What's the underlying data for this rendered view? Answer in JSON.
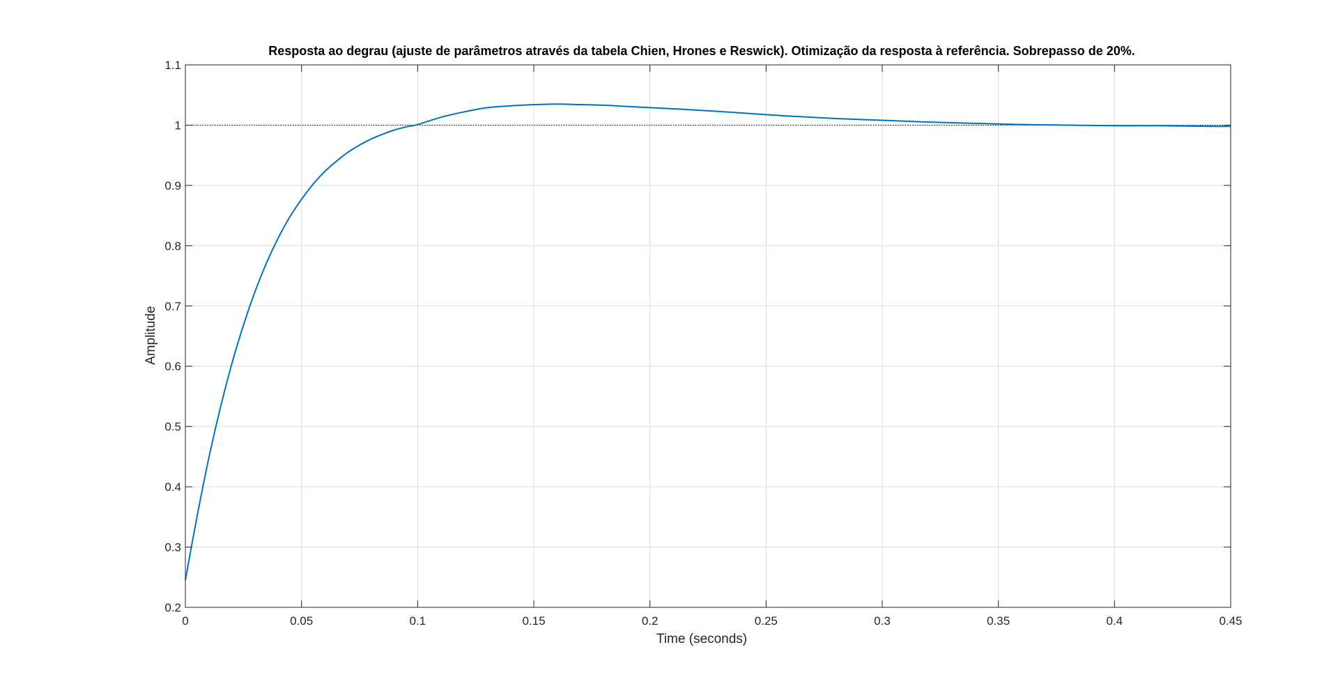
{
  "figure": {
    "background": "#ffffff"
  },
  "chart_data": {
    "type": "line",
    "title": "Resposta ao degrau (ajuste de parâmetros através da tabela Chien, Hrones e Reswick). Otimização da resposta à referência. Sobrepasso de 20%.",
    "xlabel": "Time (seconds)",
    "ylabel": "Amplitude",
    "xlim": [
      0,
      0.45
    ],
    "ylim": [
      0.2,
      1.1
    ],
    "xticks": [
      0,
      0.05,
      0.1,
      0.15,
      0.2,
      0.25,
      0.3,
      0.35,
      0.4,
      0.45
    ],
    "xtick_labels": [
      "0",
      "0.05",
      "0.1",
      "0.15",
      "0.2",
      "0.25",
      "0.3",
      "0.35",
      "0.4",
      "0.45"
    ],
    "yticks": [
      0.2,
      0.3,
      0.4,
      0.5,
      0.6,
      0.7,
      0.8,
      0.9,
      1.0,
      1.1
    ],
    "ytick_labels": [
      "0.2",
      "0.3",
      "0.4",
      "0.5",
      "0.6",
      "0.7",
      "0.8",
      "0.9",
      "1",
      "1.1"
    ],
    "grid": true,
    "reference_line": {
      "y": 1.0,
      "style": "dotted",
      "color": "#000000"
    },
    "series": [
      {
        "color": "#0072BD",
        "x": [
          0,
          0.005,
          0.01,
          0.015,
          0.02,
          0.025,
          0.03,
          0.035,
          0.04,
          0.045,
          0.05,
          0.055,
          0.06,
          0.065,
          0.07,
          0.075,
          0.08,
          0.085,
          0.09,
          0.095,
          0.1,
          0.11,
          0.12,
          0.13,
          0.14,
          0.15,
          0.16,
          0.17,
          0.18,
          0.19,
          0.2,
          0.22,
          0.24,
          0.26,
          0.28,
          0.3,
          0.32,
          0.34,
          0.36,
          0.38,
          0.4,
          0.42,
          0.44,
          0.45
        ],
        "y": [
          0.245,
          0.35,
          0.446,
          0.53,
          0.604,
          0.668,
          0.724,
          0.772,
          0.813,
          0.848,
          0.877,
          0.902,
          0.923,
          0.94,
          0.955,
          0.967,
          0.977,
          0.985,
          0.992,
          0.997,
          1.001,
          1.013,
          1.022,
          1.029,
          1.032,
          1.034,
          1.035,
          1.034,
          1.033,
          1.031,
          1.029,
          1.025,
          1.02,
          1.015,
          1.011,
          1.008,
          1.005,
          1.003,
          1.001,
          1.0,
          0.999,
          0.999,
          0.998,
          0.998
        ]
      }
    ]
  }
}
